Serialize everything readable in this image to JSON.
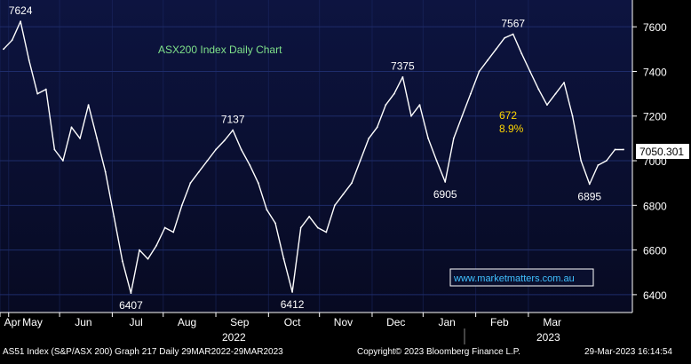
{
  "chart_data": {
    "type": "line",
    "title": "ASX200 Index Daily Chart",
    "ylim": [
      6320,
      7720
    ],
    "yticks": [
      "6400",
      "6600",
      "6800",
      "7000",
      "7200",
      "7400",
      "7600"
    ],
    "months": [
      "Apr",
      "May",
      "Jun",
      "Jul",
      "Aug",
      "Sep",
      "Oct",
      "Nov",
      "Dec",
      "Jan",
      "Feb",
      "Mar"
    ],
    "years": [
      "2022",
      "2023"
    ],
    "last_value_label": "7050.301",
    "series": [
      {
        "name": "",
        "x": [
          "2022-03-29",
          "2022-04-03",
          "2022-04-08",
          "2022-04-13",
          "2022-04-18",
          "2022-04-23",
          "2022-04-28",
          "2022-05-03",
          "2022-05-08",
          "2022-05-13",
          "2022-05-18",
          "2022-05-23",
          "2022-05-28",
          "2022-06-02",
          "2022-06-07",
          "2022-06-12",
          "2022-06-17",
          "2022-06-22",
          "2022-06-27",
          "2022-07-02",
          "2022-07-07",
          "2022-07-12",
          "2022-07-17",
          "2022-07-22",
          "2022-07-27",
          "2022-08-01",
          "2022-08-06",
          "2022-08-11",
          "2022-08-16",
          "2022-08-21",
          "2022-08-26",
          "2022-08-31",
          "2022-09-05",
          "2022-09-10",
          "2022-09-15",
          "2022-09-20",
          "2022-09-25",
          "2022-09-30",
          "2022-10-05",
          "2022-10-10",
          "2022-10-15",
          "2022-10-20",
          "2022-10-25",
          "2022-10-30",
          "2022-11-04",
          "2022-11-09",
          "2022-11-14",
          "2022-11-19",
          "2022-11-24",
          "2022-11-29",
          "2022-12-04",
          "2022-12-09",
          "2022-12-14",
          "2022-12-19",
          "2022-12-24",
          "2022-12-29",
          "2023-01-03",
          "2023-01-08",
          "2023-01-13",
          "2023-01-18",
          "2023-01-23",
          "2023-01-28",
          "2023-02-02",
          "2023-02-07",
          "2023-02-12",
          "2023-02-17",
          "2023-02-22",
          "2023-02-27",
          "2023-03-04",
          "2023-03-09",
          "2023-03-14",
          "2023-03-19",
          "2023-03-24",
          "2023-03-29"
        ],
        "y": [
          7500,
          7540,
          7624,
          7450,
          7300,
          7320,
          7050,
          7000,
          7150,
          7100,
          7250,
          7100,
          6950,
          6750,
          6550,
          6407,
          6600,
          6560,
          6620,
          6700,
          6680,
          6800,
          6900,
          6950,
          7000,
          7050,
          7090,
          7137,
          7050,
          6980,
          6900,
          6780,
          6720,
          6560,
          6412,
          6700,
          6750,
          6700,
          6680,
          6800,
          6850,
          6900,
          7000,
          7100,
          7150,
          7250,
          7300,
          7375,
          7200,
          7250,
          7100,
          7000,
          6905,
          7100,
          7200,
          7300,
          7400,
          7450,
          7500,
          7550,
          7567,
          7480,
          7400,
          7320,
          7250,
          7300,
          7350,
          7200,
          7000,
          6895,
          6980,
          7000,
          7050,
          7050
        ]
      }
    ],
    "annotations": [
      {
        "text": "7624",
        "x": "2022-04-08",
        "y": 7624
      },
      {
        "text": "6407",
        "x": "2022-06-12",
        "y": 6407
      },
      {
        "text": "7137",
        "x": "2022-08-11",
        "y": 7137
      },
      {
        "text": "6412",
        "x": "2022-09-15",
        "y": 6412
      },
      {
        "text": "7375",
        "x": "2022-11-19",
        "y": 7375
      },
      {
        "text": "6905",
        "x": "2022-12-14",
        "y": 6905
      },
      {
        "text": "7567",
        "x": "2023-01-23",
        "y": 7567
      },
      {
        "text": "6895",
        "x": "2023-03-09",
        "y": 6895
      }
    ],
    "highlight": {
      "points": "672",
      "percent": "8.9%",
      "color": "#ffd700"
    },
    "watermark": "www.marketmatters.com.au",
    "colors": {
      "background_top": "#0d1440",
      "background_bottom": "#070a22",
      "grid": "#1e2c6a",
      "line": "#ffffff",
      "title": "#7fe08a"
    },
    "grid": true
  },
  "footer": {
    "left": "AS51 Index (S&P/ASX 200) Graph 217  Daily 29MAR2022-29MAR2023",
    "center": "Copyright© 2023 Bloomberg Finance L.P.",
    "right": "29-Mar-2023 16:14:54"
  }
}
